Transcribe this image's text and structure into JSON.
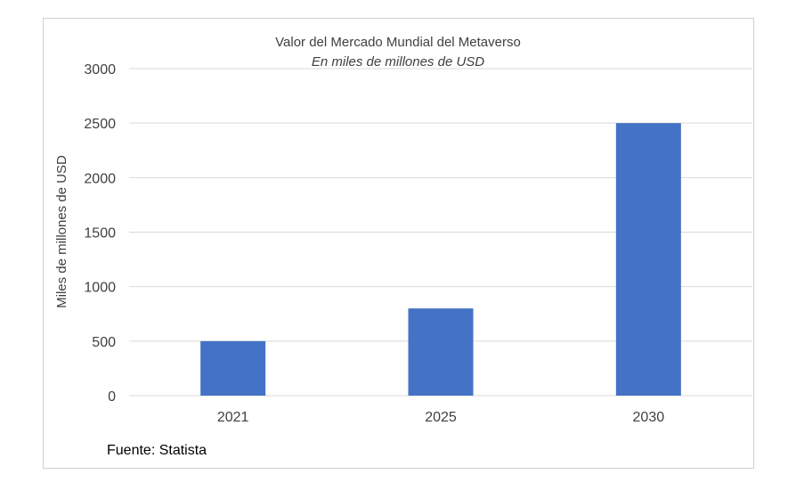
{
  "chart_data": {
    "type": "bar",
    "title": "Valor del Mercado Mundial del Metaverso",
    "subtitle": "En miles de millones de USD",
    "xlabel": "",
    "ylabel": "Miles de millones de USD",
    "categories": [
      "2021",
      "2025",
      "2030"
    ],
    "values": [
      500,
      800,
      2500
    ],
    "ylim": [
      0,
      3000
    ],
    "yticks": [
      0,
      500,
      1000,
      1500,
      2000,
      2500,
      3000
    ],
    "grid": true,
    "legend": "none",
    "bar_color": "#4472C4",
    "source": "Fuente: Statista"
  }
}
